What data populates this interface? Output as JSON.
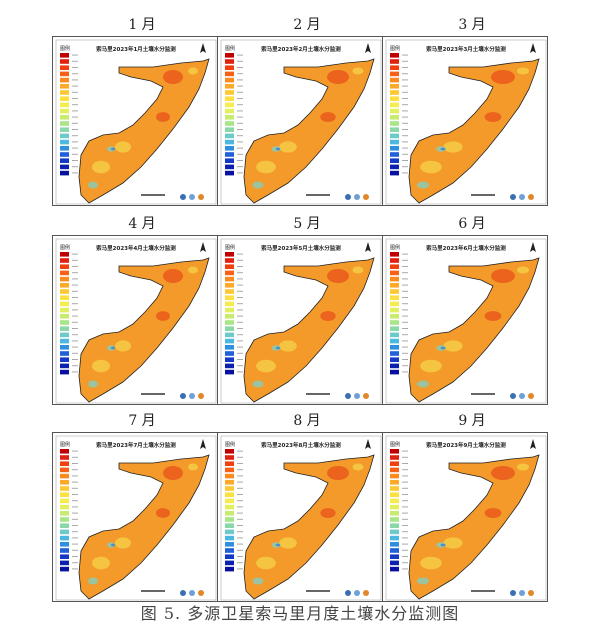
{
  "figure": {
    "caption": "图 5. 多源卫星索马里月度土壤水分监测图"
  },
  "panels": [
    {
      "month": "1 月",
      "title": "索马里2023年1月土壤水分监测"
    },
    {
      "month": "2 月",
      "title": "索马里2023年2月土壤水分监测"
    },
    {
      "month": "3 月",
      "title": "索马里2023年3月土壤水分监测"
    },
    {
      "month": "4 月",
      "title": "索马里2023年4月土壤水分监测"
    },
    {
      "month": "5 月",
      "title": "索马里2023年5月土壤水分监测"
    },
    {
      "month": "6 月",
      "title": "索马里2023年6月土壤水分监测"
    },
    {
      "month": "7 月",
      "title": "索马里2023年7月土壤水分监测"
    },
    {
      "month": "8 月",
      "title": "索马里2023年8月土壤水分监测"
    },
    {
      "month": "9 月",
      "title": "索马里2023年9月土壤水分监测"
    }
  ],
  "legend": {
    "title": "图例",
    "colors": [
      "#c00000",
      "#e02010",
      "#f04010",
      "#f86018",
      "#fb8a20",
      "#fcaa28",
      "#fdc832",
      "#fde040",
      "#f5ec50",
      "#e2f060",
      "#c8ec70",
      "#a8e488",
      "#8ad8a8",
      "#6ccac8",
      "#4cb8e0",
      "#3090e0",
      "#2060d8",
      "#1438c8",
      "#0c20b0",
      "#0810a0"
    ]
  },
  "map_colors": {
    "base": "#f39a2a",
    "dry": "#e8501a",
    "moist": "#f6d24a",
    "wet": "#7fd0c8",
    "wettest": "#2f7fd8"
  }
}
